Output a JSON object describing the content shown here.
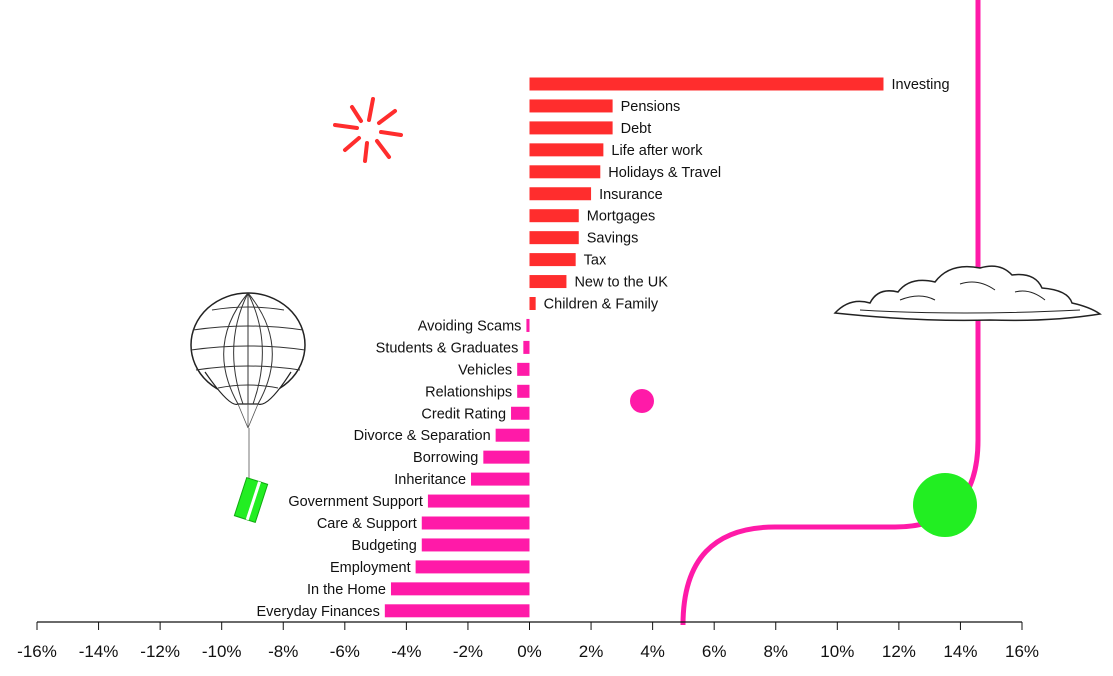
{
  "chart_data": {
    "type": "bar",
    "orientation": "horizontal",
    "categories": [
      "Investing",
      "Pensions",
      "Debt",
      "Life after work",
      "Holidays & Travel",
      "Insurance",
      "Mortgages",
      "Savings",
      "Tax",
      "New to the UK",
      "Children & Family",
      "Avoiding Scams",
      "Students & Graduates",
      "Vehicles",
      "Relationships",
      "Credit Rating",
      "Divorce & Separation",
      "Borrowing",
      "Inheritance",
      "Government Support",
      "Care & Support",
      "Budgeting",
      "Employment",
      "In the Home",
      "Everyday Finances"
    ],
    "values": [
      11.5,
      2.7,
      2.7,
      2.4,
      2.3,
      2.0,
      1.6,
      1.6,
      1.5,
      1.2,
      0.2,
      -0.1,
      -0.2,
      -0.4,
      -0.4,
      -0.6,
      -1.1,
      -1.5,
      -1.9,
      -3.3,
      -3.5,
      -3.5,
      -3.7,
      -4.5,
      -4.7
    ],
    "xlim": [
      -16,
      16
    ],
    "x_ticks": [
      "-16%",
      "-14%",
      "-12%",
      "-10%",
      "-8%",
      "-6%",
      "-4%",
      "-2%",
      "0%",
      "2%",
      "4%",
      "6%",
      "8%",
      "10%",
      "12%",
      "14%",
      "16%"
    ],
    "tick_values": [
      -16,
      -14,
      -12,
      -10,
      -8,
      -6,
      -4,
      -2,
      0,
      2,
      4,
      6,
      8,
      10,
      12,
      14,
      16
    ],
    "grid": false,
    "title": "",
    "xlabel": "",
    "ylabel": ""
  },
  "colors": {
    "positive": "#ff2d2d",
    "negative": "#ff1aa8",
    "accent_green": "#22ee22",
    "axis": "#111111"
  },
  "decorations": [
    "starburst-icon",
    "hot-air-balloon-icon",
    "cloud-icon",
    "pink-dot",
    "green-circle",
    "pink-curve-line"
  ]
}
